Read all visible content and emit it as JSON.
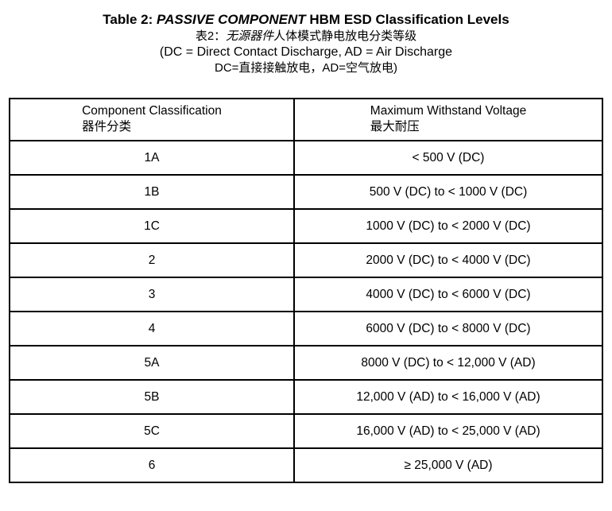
{
  "title": {
    "line1_prefix": "Table 2: ",
    "line1_italic": "PASSIVE COMPONENT",
    "line1_suffix": " HBM ESD Classification Levels",
    "line2_prefix": "表2：",
    "line2_italic": "无源器件",
    "line2_suffix": "人体模式静电放电分类等级",
    "line3": "(DC = Direct Contact Discharge, AD = Air Discharge",
    "line4": "DC=直接接触放电，AD=空气放电)"
  },
  "table": {
    "headers": [
      {
        "en": "Component Classification",
        "zh": "器件分类"
      },
      {
        "en": "Maximum Withstand Voltage",
        "zh": "最大耐压"
      }
    ],
    "rows": [
      {
        "classification": "1A",
        "voltage": "< 500 V (DC)"
      },
      {
        "classification": "1B",
        "voltage": "500 V (DC) to < 1000 V (DC)"
      },
      {
        "classification": "1C",
        "voltage": "1000 V (DC) to < 2000 V (DC)"
      },
      {
        "classification": "2",
        "voltage": "2000 V (DC) to < 4000 V (DC)"
      },
      {
        "classification": "3",
        "voltage": "4000 V (DC) to < 6000 V (DC)"
      },
      {
        "classification": "4",
        "voltage": "6000 V (DC) to < 8000 V (DC)"
      },
      {
        "classification": "5A",
        "voltage": "8000 V (DC) to < 12,000 V (AD)"
      },
      {
        "classification": "5B",
        "voltage": "12,000 V (AD) to < 16,000 V (AD)"
      },
      {
        "classification": "5C",
        "voltage": "16,000 V (AD) to < 25,000 V (AD)"
      },
      {
        "classification": "6",
        "voltage": "≥ 25,000 V (AD)"
      }
    ]
  },
  "colors": {
    "text": "#000000",
    "background": "#ffffff",
    "border": "#000000"
  }
}
